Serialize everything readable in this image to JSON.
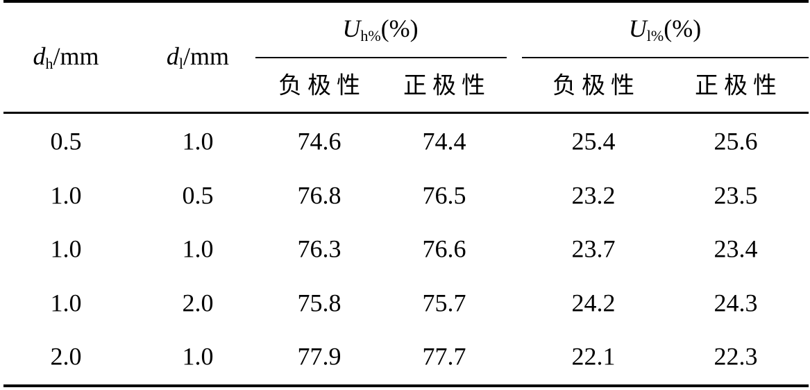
{
  "header": {
    "columns": [
      {
        "symbol": "d",
        "subscript": "h",
        "unit": "/mm"
      },
      {
        "symbol": "d",
        "subscript": "l",
        "unit": "/mm"
      }
    ],
    "groups": [
      {
        "symbol": "U",
        "subscript": "h%",
        "unit": "(%)",
        "subcolumns": [
          "负极性",
          "正极性"
        ]
      },
      {
        "symbol": "U",
        "subscript": "l%",
        "unit": "(%)",
        "subcolumns": [
          "负极性",
          "正极性"
        ]
      }
    ]
  },
  "table": {
    "rows": [
      [
        "0.5",
        "1.0",
        "74.6",
        "74.4",
        "25.4",
        "25.6"
      ],
      [
        "1.0",
        "0.5",
        "76.8",
        "76.5",
        "23.2",
        "23.5"
      ],
      [
        "1.0",
        "1.0",
        "76.3",
        "76.6",
        "23.7",
        "23.4"
      ],
      [
        "1.0",
        "2.0",
        "75.8",
        "75.7",
        "24.2",
        "24.3"
      ],
      [
        "2.0",
        "1.0",
        "77.9",
        "77.7",
        "22.1",
        "22.3"
      ]
    ]
  }
}
